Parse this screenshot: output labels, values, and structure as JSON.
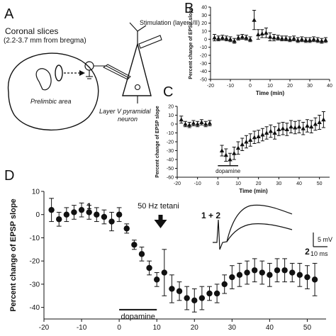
{
  "panels": {
    "A": {
      "letter": "A",
      "slices_title": "Coronal slices",
      "slices_sub": "(2.2-3.7 mm from bregma)",
      "prelimbic": "Prelimbic area",
      "stimulation": "Stimulation (layer I/II)",
      "neuron_line1": "Layer V pyramidal",
      "neuron_line2": "neuron"
    },
    "B": {
      "letter": "B"
    },
    "C": {
      "letter": "C"
    },
    "D": {
      "letter": "D"
    }
  },
  "chart_data": [
    {
      "id": "B",
      "type": "scatter",
      "marker": "triangle",
      "title": "",
      "xlabel": "Time (min)",
      "ylabel": "Percent change of EPSP slope",
      "xlim": [
        -20,
        40
      ],
      "ylim": [
        -50,
        40
      ],
      "xticks": [
        -20,
        -10,
        0,
        10,
        20,
        30,
        40
      ],
      "yticks": [
        -50,
        -40,
        -30,
        -20,
        -10,
        0,
        10,
        20,
        30,
        40
      ],
      "x": [
        -18,
        -16,
        -14,
        -12,
        -10,
        -8,
        -6,
        -4,
        -2,
        0,
        2,
        4,
        6,
        8,
        10,
        12,
        14,
        16,
        18,
        20,
        22,
        24,
        26,
        28,
        30,
        32,
        34,
        36,
        38
      ],
      "y": [
        2,
        1,
        2,
        1,
        0,
        -2,
        2,
        3,
        2,
        0,
        24,
        6,
        7,
        8,
        3,
        2,
        2,
        1,
        1,
        0,
        1,
        -1,
        0,
        -1,
        -1,
        0,
        -1,
        -2,
        -1
      ],
      "err": [
        4,
        3,
        3,
        3,
        3,
        3,
        3,
        3,
        3,
        3,
        12,
        6,
        5,
        6,
        5,
        4,
        3,
        3,
        3,
        3,
        3,
        3,
        3,
        3,
        3,
        3,
        3,
        3,
        3
      ]
    },
    {
      "id": "C",
      "type": "scatter",
      "marker": "triangle",
      "title": "",
      "xlabel": "Time (min)",
      "ylabel": "Percent change of EPSP slope",
      "xlim": [
        -20,
        55
      ],
      "ylim": [
        -60,
        20
      ],
      "xticks": [
        -20,
        -10,
        0,
        10,
        20,
        30,
        40,
        50
      ],
      "yticks": [
        -60,
        -50,
        -40,
        -30,
        -20,
        -10,
        0,
        10,
        20
      ],
      "x": [
        -18,
        -16,
        -14,
        -12,
        -10,
        -8,
        -6,
        -4,
        2,
        4,
        6,
        8,
        10,
        12,
        14,
        16,
        18,
        20,
        22,
        24,
        26,
        28,
        30,
        32,
        34,
        36,
        38,
        40,
        42,
        44,
        46,
        48,
        50,
        52
      ],
      "y": [
        5,
        0,
        -1,
        1,
        0,
        2,
        0,
        1,
        -30,
        -35,
        -40,
        -33,
        -27,
        -23,
        -20,
        -18,
        -15,
        -14,
        -12,
        -10,
        -8,
        -10,
        -6,
        -5,
        -6,
        -3,
        -4,
        -3,
        -5,
        -2,
        -3,
        0,
        2,
        5
      ],
      "err": [
        4,
        3,
        3,
        3,
        3,
        3,
        3,
        3,
        6,
        7,
        7,
        7,
        7,
        7,
        7,
        7,
        7,
        7,
        7,
        7,
        7,
        7,
        7,
        7,
        7,
        7,
        7,
        7,
        7,
        7,
        7,
        7,
        8,
        9
      ],
      "bar": {
        "label": "dopamine",
        "x_start": 0,
        "x_end": 10,
        "y": -47
      }
    },
    {
      "id": "D",
      "type": "scatter",
      "marker": "circle",
      "title": "",
      "xlabel": "",
      "ylabel": "Percent change of EPSP slope",
      "xlim": [
        -20,
        55
      ],
      "ylim": [
        -45,
        10
      ],
      "xticks": [
        -20,
        -10,
        0,
        10,
        20,
        30,
        40,
        50
      ],
      "yticks": [
        -40,
        -30,
        -20,
        -10,
        0,
        10
      ],
      "x": [
        -18,
        -16,
        -14,
        -12,
        -10,
        -8,
        -6,
        -4,
        -2,
        0,
        2,
        4,
        6,
        8,
        10,
        12,
        14,
        16,
        18,
        20,
        22,
        24,
        26,
        28,
        30,
        32,
        34,
        36,
        38,
        40,
        42,
        44,
        46,
        48,
        50,
        52
      ],
      "y": [
        2,
        -2,
        0,
        1,
        2,
        1,
        0,
        -1,
        -3,
        0,
        -6,
        -13,
        -17,
        -23,
        -28,
        -25,
        -32,
        -33,
        -36,
        -37,
        -36,
        -34,
        -34,
        -30,
        -27,
        -26,
        -25,
        -24,
        -25,
        -26,
        -24,
        -24,
        -25,
        -26,
        -27,
        -28
      ],
      "err": [
        5,
        3,
        3,
        3,
        3,
        3,
        3,
        3,
        4,
        3,
        2,
        2,
        3,
        3,
        3,
        10,
        6,
        4,
        5,
        5,
        5,
        3,
        4,
        4,
        5,
        5,
        5,
        5,
        5,
        5,
        5,
        5,
        4,
        5,
        5,
        7
      ],
      "bar": {
        "label": "dopamine",
        "x_start": 0,
        "x_end": 10,
        "y": -41
      },
      "annotations": {
        "tetani": "50 Hz tetani",
        "tetani_x": 11,
        "label1": "1",
        "label1_x": -8,
        "label2": "2",
        "label2_x": 50,
        "traces": "1 + 2",
        "scale_y": "5 mV",
        "scale_x": "10 ms"
      }
    }
  ]
}
